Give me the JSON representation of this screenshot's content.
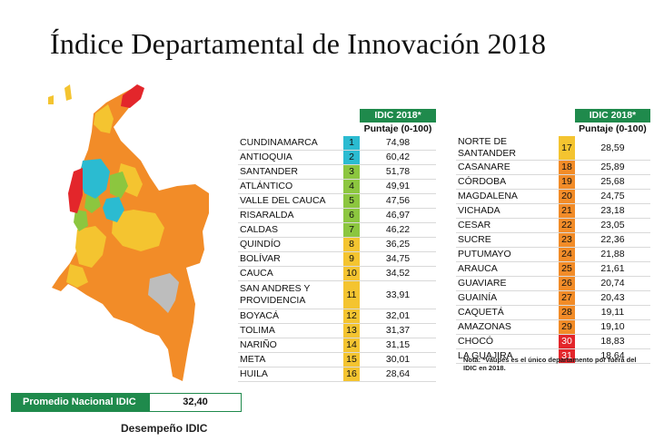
{
  "title": "Índice Departamental de Innovación 2018",
  "table_header": {
    "badge": "IDIC 2018*",
    "subheader": "Puntaje (0-100)"
  },
  "colors": {
    "header_green": "#1f8a4c",
    "tier_cyan": "#2bbbd1",
    "tier_green": "#8cc63f",
    "tier_yellow": "#f4c430",
    "tier_orange": "#f28c28",
    "tier_red": "#e3262b",
    "tier_gray": "#bdbdbd"
  },
  "departments_left": [
    {
      "name": "CUNDINAMARCA",
      "rank": "1",
      "score": "74,98",
      "tier": "cyan"
    },
    {
      "name": "ANTIOQUIA",
      "rank": "2",
      "score": "60,42",
      "tier": "cyan"
    },
    {
      "name": "SANTANDER",
      "rank": "3",
      "score": "51,78",
      "tier": "green"
    },
    {
      "name": "ATLÁNTICO",
      "rank": "4",
      "score": "49,91",
      "tier": "green"
    },
    {
      "name": "VALLE DEL CAUCA",
      "rank": "5",
      "score": "47,56",
      "tier": "green"
    },
    {
      "name": "RISARALDA",
      "rank": "6",
      "score": "46,97",
      "tier": "green"
    },
    {
      "name": "CALDAS",
      "rank": "7",
      "score": "46,22",
      "tier": "green"
    },
    {
      "name": "QUINDÍO",
      "rank": "8",
      "score": "36,25",
      "tier": "yellow"
    },
    {
      "name": "BOLÍVAR",
      "rank": "9",
      "score": "34,75",
      "tier": "yellow"
    },
    {
      "name": "CAUCA",
      "rank": "10",
      "score": "34,52",
      "tier": "yellow"
    },
    {
      "name": "SAN ANDRES Y PROVIDENCIA",
      "rank": "11",
      "score": "33,91",
      "tier": "yellow"
    },
    {
      "name": "BOYACÁ",
      "rank": "12",
      "score": "32,01",
      "tier": "yellow"
    },
    {
      "name": "TOLIMA",
      "rank": "13",
      "score": "31,37",
      "tier": "yellow"
    },
    {
      "name": "NARIÑO",
      "rank": "14",
      "score": "31,15",
      "tier": "yellow"
    },
    {
      "name": "META",
      "rank": "15",
      "score": "30,01",
      "tier": "yellow"
    },
    {
      "name": "HUILA",
      "rank": "16",
      "score": "28,64",
      "tier": "yellow"
    }
  ],
  "departments_right": [
    {
      "name": "NORTE DE SANTANDER",
      "rank": "17",
      "score": "28,59",
      "tier": "yellow"
    },
    {
      "name": "CASANARE",
      "rank": "18",
      "score": "25,89",
      "tier": "orange"
    },
    {
      "name": "CÓRDOBA",
      "rank": "19",
      "score": "25,68",
      "tier": "orange"
    },
    {
      "name": "MAGDALENA",
      "rank": "20",
      "score": "24,75",
      "tier": "orange"
    },
    {
      "name": "VICHADA",
      "rank": "21",
      "score": "23,18",
      "tier": "orange"
    },
    {
      "name": "CESAR",
      "rank": "22",
      "score": "23,05",
      "tier": "orange"
    },
    {
      "name": "SUCRE",
      "rank": "23",
      "score": "22,36",
      "tier": "orange"
    },
    {
      "name": "PUTUMAYO",
      "rank": "24",
      "score": "21,88",
      "tier": "orange"
    },
    {
      "name": "ARAUCA",
      "rank": "25",
      "score": "21,61",
      "tier": "orange"
    },
    {
      "name": "GUAVIARE",
      "rank": "26",
      "score": "20,74",
      "tier": "orange"
    },
    {
      "name": "GUAINÍA",
      "rank": "27",
      "score": "20,43",
      "tier": "orange"
    },
    {
      "name": "CAQUETÁ",
      "rank": "28",
      "score": "19,11",
      "tier": "orange"
    },
    {
      "name": "AMAZONAS",
      "rank": "29",
      "score": "19,10",
      "tier": "orange"
    },
    {
      "name": "CHOCÓ",
      "rank": "30",
      "score": "18,83",
      "tier": "red"
    },
    {
      "name": "LA GUAJIRA",
      "rank": "31",
      "score": "18,64",
      "tier": "red"
    }
  ],
  "note": "Nota: *Vaupés es el único departamento por fuera del IDIC en 2018.",
  "average": {
    "label": "Promedio Nacional IDIC",
    "value": "32,40"
  },
  "legend_title": "Desempeño IDIC"
}
